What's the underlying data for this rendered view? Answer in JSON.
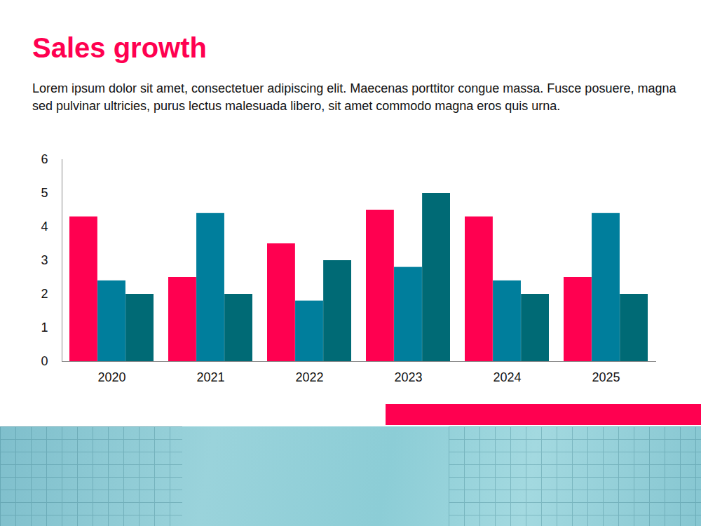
{
  "chart_data": {
    "type": "bar",
    "title": "Sales growth",
    "subtitle": "Lorem ipsum dolor sit amet, consectetuer adipiscing elit. Maecenas porttitor congue massa. Fusce posuere, magna sed pulvinar ultricies, purus lectus malesuada libero, sit amet commodo magna eros quis urna.",
    "categories": [
      "2020",
      "2021",
      "2022",
      "2023",
      "2024",
      "2025"
    ],
    "series": [
      {
        "color": "#ff0050",
        "values": [
          4.3,
          2.5,
          3.5,
          4.5,
          4.3,
          2.5
        ]
      },
      {
        "color": "#007e9c",
        "values": [
          2.4,
          4.4,
          1.8,
          2.8,
          2.4,
          4.4
        ]
      },
      {
        "color": "#006a75",
        "values": [
          2.0,
          2.0,
          3.0,
          5.0,
          2.0,
          2.0
        ]
      }
    ],
    "ylim": [
      0,
      6
    ],
    "yticks": [
      0,
      1,
      2,
      3,
      4,
      5,
      6
    ],
    "grid": false
  }
}
